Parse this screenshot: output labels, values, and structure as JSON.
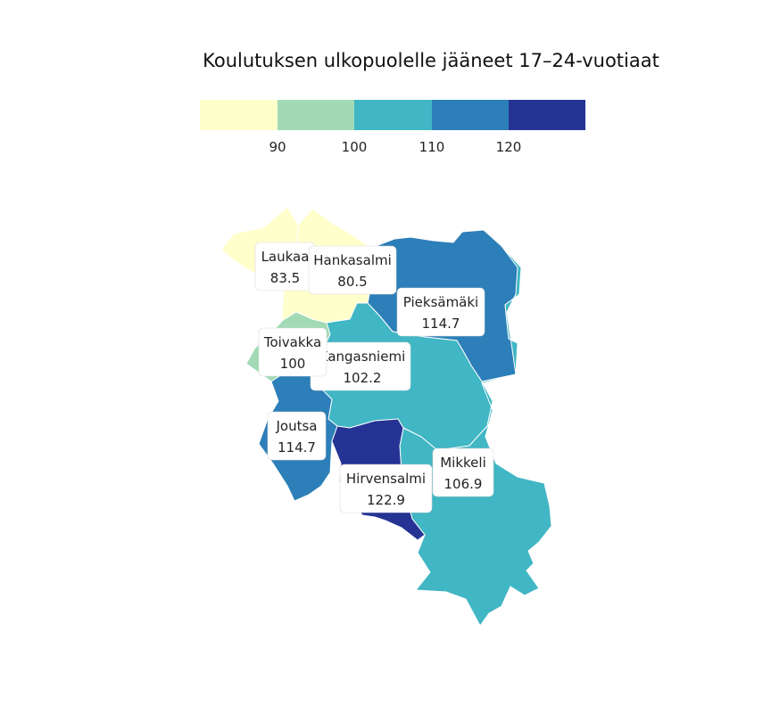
{
  "title": "Koulutuksen ulkopuolelle jääneet 17–24-vuotiaat",
  "legend": {
    "ticks": [
      "90",
      "100",
      "110",
      "120"
    ],
    "bins": [
      {
        "color": "#ffffcc"
      },
      {
        "color": "#a1dab4"
      },
      {
        "color": "#41b6c4"
      },
      {
        "color": "#2c7fb8"
      },
      {
        "color": "#253494"
      }
    ]
  },
  "regions": [
    {
      "name": "Laukaa",
      "value": "83.5",
      "color": "#ffffcc"
    },
    {
      "name": "Hankasalmi",
      "value": "80.5",
      "color": "#ffffcc"
    },
    {
      "name": "Pieksämäki",
      "value": "114.7",
      "color": "#2c7fb8"
    },
    {
      "name": "Toivakka",
      "value": "100",
      "color": "#a1dab4"
    },
    {
      "name": "Kangasniemi",
      "value": "102.2",
      "color": "#41b6c4"
    },
    {
      "name": "Joutsa",
      "value": "114.7",
      "color": "#2c7fb8"
    },
    {
      "name": "Mikkeli",
      "value": "106.9",
      "color": "#41b6c4"
    },
    {
      "name": "Hirvensalmi",
      "value": "122.9",
      "color": "#253494"
    }
  ]
}
